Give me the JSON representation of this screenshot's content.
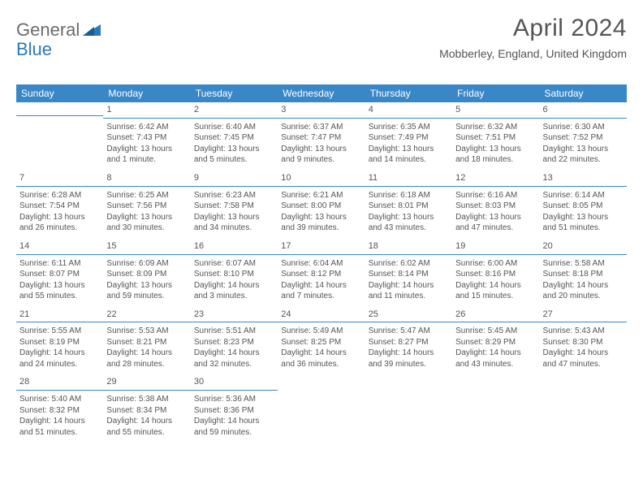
{
  "logo": {
    "text1": "General",
    "text2": "Blue"
  },
  "title": "April 2024",
  "location": "Mobberley, England, United Kingdom",
  "dayHeaders": [
    "Sunday",
    "Monday",
    "Tuesday",
    "Wednesday",
    "Thursday",
    "Friday",
    "Saturday"
  ],
  "colors": {
    "headerBg": "#3a87c8",
    "headerText": "#ffffff",
    "rule": "#3a87c8",
    "bodyText": "#555555",
    "logoGray": "#6b6b6b",
    "logoBlue": "#2a7ab9"
  },
  "weeks": [
    [
      {
        "n": "",
        "l1": "",
        "l2": "",
        "l3": "",
        "l4": ""
      },
      {
        "n": "1",
        "l1": "Sunrise: 6:42 AM",
        "l2": "Sunset: 7:43 PM",
        "l3": "Daylight: 13 hours",
        "l4": "and 1 minute."
      },
      {
        "n": "2",
        "l1": "Sunrise: 6:40 AM",
        "l2": "Sunset: 7:45 PM",
        "l3": "Daylight: 13 hours",
        "l4": "and 5 minutes."
      },
      {
        "n": "3",
        "l1": "Sunrise: 6:37 AM",
        "l2": "Sunset: 7:47 PM",
        "l3": "Daylight: 13 hours",
        "l4": "and 9 minutes."
      },
      {
        "n": "4",
        "l1": "Sunrise: 6:35 AM",
        "l2": "Sunset: 7:49 PM",
        "l3": "Daylight: 13 hours",
        "l4": "and 14 minutes."
      },
      {
        "n": "5",
        "l1": "Sunrise: 6:32 AM",
        "l2": "Sunset: 7:51 PM",
        "l3": "Daylight: 13 hours",
        "l4": "and 18 minutes."
      },
      {
        "n": "6",
        "l1": "Sunrise: 6:30 AM",
        "l2": "Sunset: 7:52 PM",
        "l3": "Daylight: 13 hours",
        "l4": "and 22 minutes."
      }
    ],
    [
      {
        "n": "7",
        "l1": "Sunrise: 6:28 AM",
        "l2": "Sunset: 7:54 PM",
        "l3": "Daylight: 13 hours",
        "l4": "and 26 minutes."
      },
      {
        "n": "8",
        "l1": "Sunrise: 6:25 AM",
        "l2": "Sunset: 7:56 PM",
        "l3": "Daylight: 13 hours",
        "l4": "and 30 minutes."
      },
      {
        "n": "9",
        "l1": "Sunrise: 6:23 AM",
        "l2": "Sunset: 7:58 PM",
        "l3": "Daylight: 13 hours",
        "l4": "and 34 minutes."
      },
      {
        "n": "10",
        "l1": "Sunrise: 6:21 AM",
        "l2": "Sunset: 8:00 PM",
        "l3": "Daylight: 13 hours",
        "l4": "and 39 minutes."
      },
      {
        "n": "11",
        "l1": "Sunrise: 6:18 AM",
        "l2": "Sunset: 8:01 PM",
        "l3": "Daylight: 13 hours",
        "l4": "and 43 minutes."
      },
      {
        "n": "12",
        "l1": "Sunrise: 6:16 AM",
        "l2": "Sunset: 8:03 PM",
        "l3": "Daylight: 13 hours",
        "l4": "and 47 minutes."
      },
      {
        "n": "13",
        "l1": "Sunrise: 6:14 AM",
        "l2": "Sunset: 8:05 PM",
        "l3": "Daylight: 13 hours",
        "l4": "and 51 minutes."
      }
    ],
    [
      {
        "n": "14",
        "l1": "Sunrise: 6:11 AM",
        "l2": "Sunset: 8:07 PM",
        "l3": "Daylight: 13 hours",
        "l4": "and 55 minutes."
      },
      {
        "n": "15",
        "l1": "Sunrise: 6:09 AM",
        "l2": "Sunset: 8:09 PM",
        "l3": "Daylight: 13 hours",
        "l4": "and 59 minutes."
      },
      {
        "n": "16",
        "l1": "Sunrise: 6:07 AM",
        "l2": "Sunset: 8:10 PM",
        "l3": "Daylight: 14 hours",
        "l4": "and 3 minutes."
      },
      {
        "n": "17",
        "l1": "Sunrise: 6:04 AM",
        "l2": "Sunset: 8:12 PM",
        "l3": "Daylight: 14 hours",
        "l4": "and 7 minutes."
      },
      {
        "n": "18",
        "l1": "Sunrise: 6:02 AM",
        "l2": "Sunset: 8:14 PM",
        "l3": "Daylight: 14 hours",
        "l4": "and 11 minutes."
      },
      {
        "n": "19",
        "l1": "Sunrise: 6:00 AM",
        "l2": "Sunset: 8:16 PM",
        "l3": "Daylight: 14 hours",
        "l4": "and 15 minutes."
      },
      {
        "n": "20",
        "l1": "Sunrise: 5:58 AM",
        "l2": "Sunset: 8:18 PM",
        "l3": "Daylight: 14 hours",
        "l4": "and 20 minutes."
      }
    ],
    [
      {
        "n": "21",
        "l1": "Sunrise: 5:55 AM",
        "l2": "Sunset: 8:19 PM",
        "l3": "Daylight: 14 hours",
        "l4": "and 24 minutes."
      },
      {
        "n": "22",
        "l1": "Sunrise: 5:53 AM",
        "l2": "Sunset: 8:21 PM",
        "l3": "Daylight: 14 hours",
        "l4": "and 28 minutes."
      },
      {
        "n": "23",
        "l1": "Sunrise: 5:51 AM",
        "l2": "Sunset: 8:23 PM",
        "l3": "Daylight: 14 hours",
        "l4": "and 32 minutes."
      },
      {
        "n": "24",
        "l1": "Sunrise: 5:49 AM",
        "l2": "Sunset: 8:25 PM",
        "l3": "Daylight: 14 hours",
        "l4": "and 36 minutes."
      },
      {
        "n": "25",
        "l1": "Sunrise: 5:47 AM",
        "l2": "Sunset: 8:27 PM",
        "l3": "Daylight: 14 hours",
        "l4": "and 39 minutes."
      },
      {
        "n": "26",
        "l1": "Sunrise: 5:45 AM",
        "l2": "Sunset: 8:29 PM",
        "l3": "Daylight: 14 hours",
        "l4": "and 43 minutes."
      },
      {
        "n": "27",
        "l1": "Sunrise: 5:43 AM",
        "l2": "Sunset: 8:30 PM",
        "l3": "Daylight: 14 hours",
        "l4": "and 47 minutes."
      }
    ],
    [
      {
        "n": "28",
        "l1": "Sunrise: 5:40 AM",
        "l2": "Sunset: 8:32 PM",
        "l3": "Daylight: 14 hours",
        "l4": "and 51 minutes."
      },
      {
        "n": "29",
        "l1": "Sunrise: 5:38 AM",
        "l2": "Sunset: 8:34 PM",
        "l3": "Daylight: 14 hours",
        "l4": "and 55 minutes."
      },
      {
        "n": "30",
        "l1": "Sunrise: 5:36 AM",
        "l2": "Sunset: 8:36 PM",
        "l3": "Daylight: 14 hours",
        "l4": "and 59 minutes."
      },
      {
        "n": "",
        "l1": "",
        "l2": "",
        "l3": "",
        "l4": ""
      },
      {
        "n": "",
        "l1": "",
        "l2": "",
        "l3": "",
        "l4": ""
      },
      {
        "n": "",
        "l1": "",
        "l2": "",
        "l3": "",
        "l4": ""
      },
      {
        "n": "",
        "l1": "",
        "l2": "",
        "l3": "",
        "l4": ""
      }
    ]
  ]
}
